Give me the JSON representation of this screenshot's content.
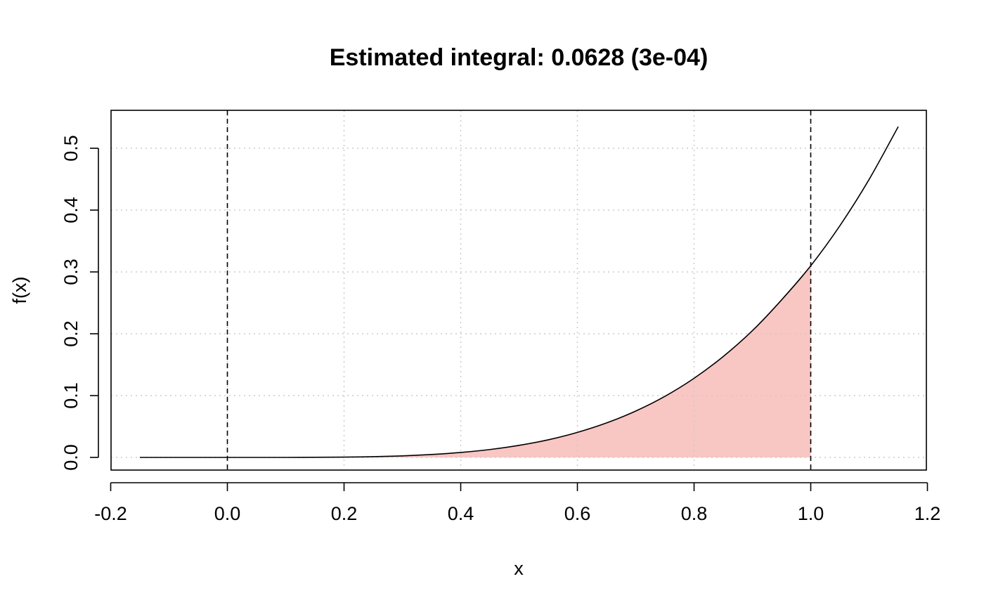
{
  "chart_data": {
    "type": "line",
    "title": "Estimated integral: 0.0628 (3e-04)",
    "xlabel": "x",
    "ylabel": "f(x)",
    "xlim": [
      -0.2,
      1.2
    ],
    "ylim": [
      0.0,
      0.5
    ],
    "x_ticks": [
      -0.2,
      0.0,
      0.2,
      0.4,
      0.6,
      0.8,
      1.0,
      1.2
    ],
    "x_tick_labels": [
      "-0.2",
      "0.0",
      "0.2",
      "0.4",
      "0.6",
      "0.8",
      "1.0",
      "1.2"
    ],
    "y_ticks": [
      0.0,
      0.1,
      0.2,
      0.3,
      0.4,
      0.5
    ],
    "y_tick_labels": [
      "0.0",
      "0.1",
      "0.2",
      "0.3",
      "0.4",
      "0.5"
    ],
    "grid": true,
    "grid_style": "dotted",
    "vertical_reference_lines": [
      0.0,
      1.0
    ],
    "shaded_region": {
      "from": 0.0,
      "to": 1.0,
      "color": "#F8C6C3"
    },
    "series": [
      {
        "color": "#000000",
        "x": [
          -0.15,
          -0.1,
          -0.05,
          0.0,
          0.05,
          0.1,
          0.15,
          0.2,
          0.25,
          0.3,
          0.35,
          0.4,
          0.45,
          0.5,
          0.55,
          0.6,
          0.65,
          0.7,
          0.75,
          0.8,
          0.85,
          0.9,
          0.95,
          1.0,
          1.05,
          1.1,
          1.15
        ],
        "y": [
          0.0,
          0.0,
          0.0,
          0.0,
          0.0,
          0.0,
          0.0002,
          0.0005,
          0.0012,
          0.0025,
          0.0047,
          0.008,
          0.0128,
          0.0195,
          0.0285,
          0.0405,
          0.0558,
          0.075,
          0.0988,
          0.128,
          0.1632,
          0.205,
          0.2548,
          0.31,
          0.3748,
          0.4495,
          0.535
        ]
      }
    ]
  }
}
